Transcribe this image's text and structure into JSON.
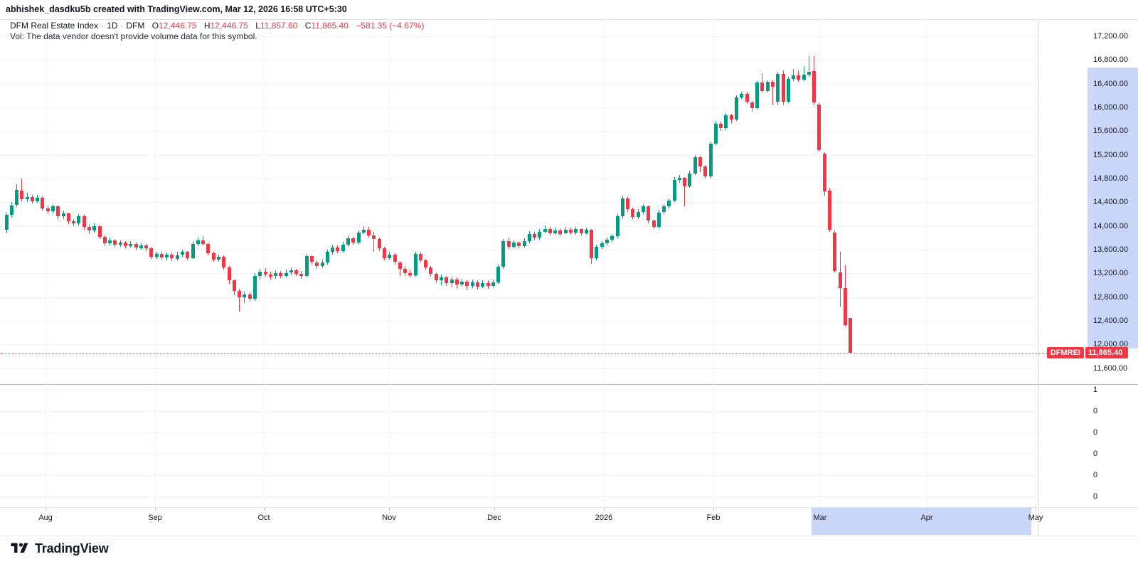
{
  "header": {
    "attribution": "abhishek_dasdku5b created with TradingView.com, Mar 12, 2026 16:58 UTC+5:30"
  },
  "legend": {
    "line1": {
      "title": "DFM Real Estate Index",
      "sep1": "·",
      "interval": "1D",
      "sep2": "·",
      "exchange": "DFM",
      "o_label": "O",
      "o": "12,446.75",
      "h_label": "H",
      "h": "12,446.75",
      "l_label": "L",
      "l": "11,857.60",
      "c_label": "C",
      "c": "11,865.40",
      "change": "−581.35 (−4.67%)"
    },
    "line2": "Vol: The data vendor doesn't provide volume data for this symbol."
  },
  "price_axis": {
    "labels": [
      "17,200.00",
      "16,800.00",
      "16,400.00",
      "16,000.00",
      "15,600.00",
      "15,200.00",
      "14,800.00",
      "14,400.00",
      "14,000.00",
      "13,600.00",
      "13,200.00",
      "12,800.00",
      "12,400.00",
      "12,000.00",
      "11,600.00"
    ],
    "last_price_label": {
      "symbol": "DFMREI",
      "value": "11,865.40"
    }
  },
  "volume_axis": {
    "labels": [
      "1",
      "0",
      "0",
      "0",
      "0",
      "0"
    ]
  },
  "time_axis": {
    "labels": [
      "Aug",
      "Sep",
      "Oct",
      "Nov",
      "Dec",
      "2026",
      "Feb",
      "Mar",
      "Apr",
      "May"
    ]
  },
  "footer": {
    "brand": "TradingView"
  },
  "colors": {
    "up": "#089981",
    "down": "#f23645",
    "accent_red": "#f23645",
    "axis_highlight": "#c9d6f7",
    "grid": "#f0f3fa",
    "border": "#e0e3eb",
    "divider": "#b2b5be",
    "text": "#131722"
  },
  "chart_data": {
    "type": "candlestick",
    "title": "DFM Real Estate Index",
    "interval": "1D",
    "exchange": "DFM",
    "last_ohlc": {
      "open": 12446.75,
      "high": 12446.75,
      "low": 11857.6,
      "close": 11865.4,
      "change": -581.35,
      "change_pct": -4.67
    },
    "price_axis_range": {
      "tick_min": 11600,
      "tick_max": 17200,
      "tick_step": 400,
      "pane_top_price": 17488,
      "pane_bottom_price": 11356
    },
    "x_axis_months": [
      "Aug",
      "Sep",
      "Oct",
      "Nov",
      "Dec",
      "2026",
      "Feb",
      "Mar",
      "Apr",
      "May"
    ],
    "volume_note": "no volume data provided",
    "candles": [
      [
        13940,
        14230,
        13880,
        14190
      ],
      [
        14190,
        14400,
        14140,
        14350
      ],
      [
        14350,
        14700,
        14320,
        14610
      ],
      [
        14600,
        14795,
        14420,
        14455
      ],
      [
        14455,
        14560,
        14410,
        14490
      ],
      [
        14490,
        14530,
        14380,
        14420
      ],
      [
        14420,
        14520,
        14390,
        14480
      ],
      [
        14480,
        14500,
        14260,
        14300
      ],
      [
        14300,
        14350,
        14200,
        14245
      ],
      [
        14245,
        14370,
        14210,
        14330
      ],
      [
        14330,
        14350,
        14110,
        14160
      ],
      [
        14160,
        14260,
        14120,
        14210
      ],
      [
        14210,
        14230,
        14030,
        14080
      ],
      [
        14080,
        14120,
        13990,
        14040
      ],
      [
        14040,
        14200,
        14010,
        14170
      ],
      [
        14170,
        14190,
        13940,
        13985
      ],
      [
        13985,
        14020,
        13870,
        13920
      ],
      [
        13920,
        14040,
        13890,
        13995
      ],
      [
        13995,
        14010,
        13780,
        13820
      ],
      [
        13820,
        13850,
        13660,
        13705
      ],
      [
        13705,
        13800,
        13670,
        13755
      ],
      [
        13755,
        13780,
        13640,
        13680
      ],
      [
        13680,
        13760,
        13650,
        13725
      ],
      [
        13725,
        13740,
        13620,
        13655
      ],
      [
        13655,
        13745,
        13630,
        13700
      ],
      [
        13700,
        13720,
        13590,
        13630
      ],
      [
        13630,
        13710,
        13600,
        13675
      ],
      [
        13675,
        13700,
        13580,
        13620
      ],
      [
        13620,
        13650,
        13440,
        13480
      ],
      [
        13480,
        13570,
        13450,
        13530
      ],
      [
        13530,
        13560,
        13430,
        13470
      ],
      [
        13470,
        13550,
        13420,
        13520
      ],
      [
        13520,
        13540,
        13410,
        13450
      ],
      [
        13450,
        13560,
        13420,
        13510
      ],
      [
        13510,
        13600,
        13480,
        13560
      ],
      [
        13560,
        13580,
        13420,
        13460
      ],
      [
        13460,
        13740,
        13440,
        13700
      ],
      [
        13700,
        13800,
        13660,
        13760
      ],
      [
        13760,
        13830,
        13670,
        13700
      ],
      [
        13700,
        13720,
        13500,
        13540
      ],
      [
        13540,
        13560,
        13390,
        13430
      ],
      [
        13430,
        13520,
        13400,
        13480
      ],
      [
        13480,
        13500,
        13260,
        13300
      ],
      [
        13300,
        13320,
        13020,
        13080
      ],
      [
        13080,
        13100,
        12830,
        12900
      ],
      [
        12900,
        12940,
        12560,
        12790
      ],
      [
        12790,
        12890,
        12700,
        12840
      ],
      [
        12840,
        12880,
        12720,
        12770
      ],
      [
        12770,
        13200,
        12740,
        13160
      ],
      [
        13160,
        13280,
        13100,
        13230
      ],
      [
        13230,
        13290,
        13140,
        13180
      ],
      [
        13180,
        13230,
        13100,
        13150
      ],
      [
        13150,
        13250,
        13110,
        13200
      ],
      [
        13200,
        13240,
        13120,
        13160
      ],
      [
        13160,
        13260,
        13130,
        13210
      ],
      [
        13210,
        13300,
        13170,
        13250
      ],
      [
        13250,
        13280,
        13150,
        13190
      ],
      [
        13190,
        13240,
        13110,
        13160
      ],
      [
        13160,
        13530,
        13130,
        13490
      ],
      [
        13490,
        13510,
        13350,
        13390
      ],
      [
        13390,
        13420,
        13280,
        13320
      ],
      [
        13320,
        13430,
        13290,
        13380
      ],
      [
        13380,
        13600,
        13350,
        13560
      ],
      [
        13560,
        13690,
        13520,
        13640
      ],
      [
        13640,
        13670,
        13540,
        13580
      ],
      [
        13580,
        13730,
        13550,
        13680
      ],
      [
        13680,
        13840,
        13650,
        13790
      ],
      [
        13790,
        13820,
        13680,
        13720
      ],
      [
        13720,
        13930,
        13690,
        13890
      ],
      [
        13890,
        14000,
        13860,
        13940
      ],
      [
        13940,
        13980,
        13800,
        13840
      ],
      [
        13840,
        13900,
        13570,
        13780
      ],
      [
        13780,
        13800,
        13580,
        13620
      ],
      [
        13620,
        13650,
        13420,
        13460
      ],
      [
        13460,
        13560,
        13430,
        13520
      ],
      [
        13520,
        13540,
        13350,
        13390
      ],
      [
        13390,
        13410,
        13150,
        13280
      ],
      [
        13280,
        13320,
        13160,
        13200
      ],
      [
        13200,
        13260,
        13130,
        13170
      ],
      [
        13170,
        13570,
        13140,
        13530
      ],
      [
        13530,
        13560,
        13380,
        13420
      ],
      [
        13420,
        13450,
        13260,
        13300
      ],
      [
        13300,
        13330,
        13150,
        13190
      ],
      [
        13190,
        13220,
        13040,
        13080
      ],
      [
        13080,
        13180,
        13000,
        13130
      ],
      [
        13130,
        13160,
        12990,
        13030
      ],
      [
        13030,
        13150,
        12960,
        13100
      ],
      [
        13100,
        13130,
        12950,
        13010
      ],
      [
        13010,
        13110,
        12980,
        13060
      ],
      [
        13060,
        13090,
        12920,
        12990
      ],
      [
        12990,
        13100,
        12950,
        13050
      ],
      [
        13050,
        13080,
        12930,
        12980
      ],
      [
        12980,
        13090,
        12950,
        13040
      ],
      [
        13040,
        13080,
        12940,
        12990
      ],
      [
        12990,
        13100,
        12960,
        13050
      ],
      [
        13050,
        13350,
        13020,
        13310
      ],
      [
        13310,
        13780,
        13280,
        13740
      ],
      [
        13740,
        13800,
        13610,
        13650
      ],
      [
        13650,
        13760,
        13620,
        13720
      ],
      [
        13720,
        13750,
        13620,
        13660
      ],
      [
        13660,
        13790,
        13630,
        13740
      ],
      [
        13740,
        13910,
        13710,
        13870
      ],
      [
        13870,
        13900,
        13760,
        13800
      ],
      [
        13800,
        13950,
        13770,
        13900
      ],
      [
        13900,
        14010,
        13870,
        13950
      ],
      [
        13950,
        13980,
        13840,
        13880
      ],
      [
        13880,
        13970,
        13850,
        13930
      ],
      [
        13930,
        13960,
        13830,
        13870
      ],
      [
        13870,
        13990,
        13860,
        13940
      ],
      [
        13940,
        13970,
        13850,
        13890
      ],
      [
        13890,
        13990,
        13855,
        13945
      ],
      [
        13945,
        13965,
        13845,
        13880
      ],
      [
        13880,
        13975,
        13850,
        13935
      ],
      [
        13935,
        13950,
        13360,
        13460
      ],
      [
        13460,
        13690,
        13420,
        13645
      ],
      [
        13645,
        13750,
        13615,
        13705
      ],
      [
        13705,
        13805,
        13675,
        13765
      ],
      [
        13765,
        13870,
        13735,
        13825
      ],
      [
        13825,
        14200,
        13795,
        14160
      ],
      [
        14160,
        14510,
        14130,
        14465
      ],
      [
        14465,
        14490,
        14245,
        14285
      ],
      [
        14285,
        14310,
        14110,
        14150
      ],
      [
        14150,
        14290,
        14120,
        14240
      ],
      [
        14240,
        14370,
        14200,
        14330
      ],
      [
        14330,
        14350,
        14050,
        14090
      ],
      [
        14090,
        14110,
        13945,
        13985
      ],
      [
        13985,
        14270,
        13955,
        14230
      ],
      [
        14230,
        14370,
        14200,
        14330
      ],
      [
        14330,
        14470,
        14300,
        14430
      ],
      [
        14430,
        14820,
        14400,
        14780
      ],
      [
        14780,
        14860,
        14730,
        14810
      ],
      [
        14810,
        14830,
        14330,
        14670
      ],
      [
        14670,
        14930,
        14640,
        14890
      ],
      [
        14890,
        15200,
        14860,
        15160
      ],
      [
        15160,
        15190,
        14905,
        15000
      ],
      [
        15000,
        15030,
        14800,
        14830
      ],
      [
        14830,
        15430,
        14800,
        15390
      ],
      [
        15390,
        15770,
        15360,
        15730
      ],
      [
        15730,
        15760,
        15610,
        15650
      ],
      [
        15650,
        15910,
        15620,
        15865
      ],
      [
        15865,
        15890,
        15740,
        15800
      ],
      [
        15800,
        16200,
        15770,
        16165
      ],
      [
        16165,
        16270,
        16140,
        16230
      ],
      [
        16230,
        16260,
        16060,
        16090
      ],
      [
        16090,
        16110,
        15925,
        15985
      ],
      [
        15985,
        16440,
        15960,
        16420
      ],
      [
        16420,
        16580,
        16250,
        16280
      ],
      [
        16280,
        16460,
        16255,
        16430
      ],
      [
        16430,
        16470,
        16040,
        16350
      ],
      [
        16100,
        16600,
        16040,
        16560
      ],
      [
        16560,
        16620,
        16040,
        16100
      ],
      [
        16100,
        16520,
        16070,
        16480
      ],
      [
        16480,
        16650,
        16440,
        16540
      ],
      [
        16540,
        16620,
        16430,
        16470
      ],
      [
        16470,
        16700,
        16440,
        16550
      ],
      [
        16550,
        16870,
        16520,
        16600
      ],
      [
        16610,
        16860,
        16050,
        16080
      ],
      [
        16050,
        16080,
        15260,
        15280
      ],
      [
        15220,
        15250,
        14510,
        14590
      ],
      [
        14600,
        14640,
        13900,
        13940
      ],
      [
        13890,
        13920,
        13210,
        13240
      ],
      [
        13215,
        13570,
        12640,
        12950
      ],
      [
        12950,
        13340,
        12300,
        12330
      ],
      [
        12446.75,
        12446.75,
        11857.6,
        11865.4
      ]
    ]
  }
}
